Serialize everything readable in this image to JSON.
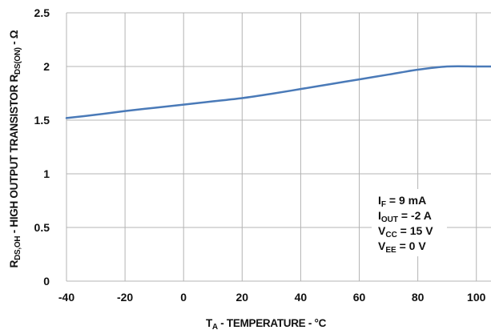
{
  "chart_data": {
    "type": "line",
    "x": [
      -40,
      -30,
      -20,
      -10,
      0,
      10,
      20,
      30,
      40,
      50,
      60,
      70,
      80,
      90,
      100,
      105
    ],
    "series": [
      {
        "values": [
          1.52,
          1.55,
          1.585,
          1.615,
          1.645,
          1.675,
          1.705,
          1.745,
          1.79,
          1.835,
          1.88,
          1.925,
          1.97,
          2.0,
          2.0,
          2.0
        ],
        "color": "#4a7ab8"
      }
    ],
    "xlim": [
      -40,
      105
    ],
    "ylim": [
      0,
      2.5
    ],
    "xticks": [
      -40,
      -20,
      0,
      20,
      40,
      60,
      80,
      100
    ],
    "xtick_labels": [
      "-40",
      "-20",
      "0",
      "20",
      "40",
      "60",
      "80",
      "100"
    ],
    "yticks": [
      0,
      0.5,
      1,
      1.5,
      2,
      2.5
    ],
    "ytick_labels": [
      "0",
      "0.5",
      "1",
      "1.5",
      "2",
      "2.5"
    ],
    "xlabel": {
      "main": "T",
      "sub": "A",
      "rest": " - TEMPERATURE - °C"
    },
    "ylabel": {
      "p1": "R",
      "s1": "DS,OH",
      "p2": " - HIGH OUTPUT TRANSISTOR R",
      "s2": "DS(ON)",
      "p3": " - Ω"
    },
    "annotation": [
      {
        "main": "I",
        "sub": "F",
        "rest": " = 9 mA"
      },
      {
        "main": "I",
        "sub": "OUT",
        "rest": " = -2 A"
      },
      {
        "main": "V",
        "sub": "CC",
        "rest": " = 15 V"
      },
      {
        "main": "V",
        "sub": "EE",
        "rest": " = 0 V"
      }
    ],
    "grid": true,
    "grid_color": "#b4b4b4"
  }
}
